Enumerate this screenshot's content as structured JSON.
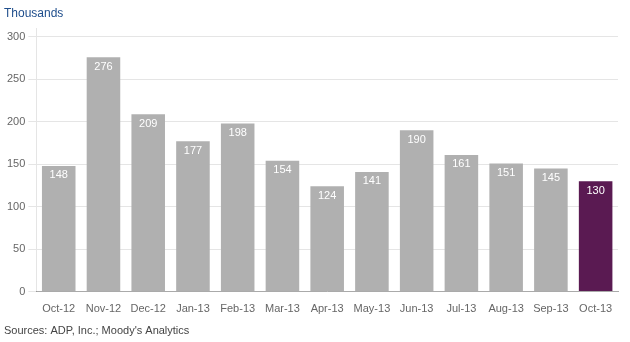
{
  "chart_data": {
    "type": "bar",
    "ylabel": "Thousands",
    "annotation": "Sources: ADP, Inc.; Moody's Analytics",
    "categories": [
      "Oct-12",
      "Nov-12",
      "Dec-12",
      "Jan-13",
      "Feb-13",
      "Mar-13",
      "Apr-13",
      "May-13",
      "Jun-13",
      "Jul-13",
      "Aug-13",
      "Sep-13",
      "Oct-13"
    ],
    "values": [
      148,
      276,
      209,
      177,
      198,
      154,
      124,
      141,
      190,
      161,
      151,
      145,
      130
    ],
    "colors": [
      "#b0b0b0",
      "#b0b0b0",
      "#b0b0b0",
      "#b0b0b0",
      "#b0b0b0",
      "#b0b0b0",
      "#b0b0b0",
      "#b0b0b0",
      "#b0b0b0",
      "#b0b0b0",
      "#b0b0b0",
      "#b0b0b0",
      "#5a1a52"
    ],
    "ylim": [
      0,
      310
    ],
    "yticks": [
      0,
      50,
      100,
      150,
      200,
      250,
      300
    ],
    "grid": true,
    "data_labels": true
  }
}
